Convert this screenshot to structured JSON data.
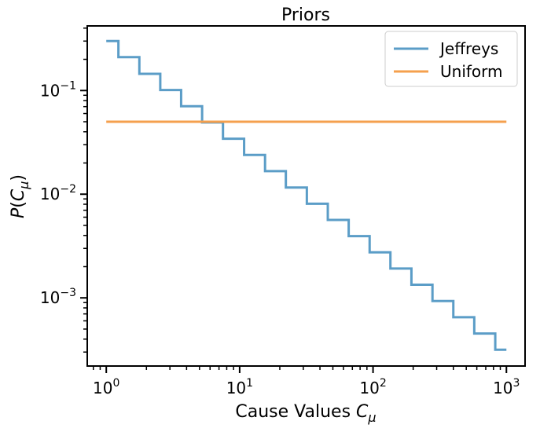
{
  "chart_data": {
    "type": "line",
    "title": "Priors",
    "xlabel": "Cause Values C_μ",
    "ylabel": "P(C_μ)",
    "xscale": "log",
    "yscale": "log",
    "xlim": [
      0.72,
      1380
    ],
    "ylim": [
      0.00022,
      0.42
    ],
    "grid": false,
    "legend_position": "top-right",
    "x_ticks": [
      {
        "value": 1,
        "base": "10",
        "exp": "0"
      },
      {
        "value": 10,
        "base": "10",
        "exp": "1"
      },
      {
        "value": 100,
        "base": "10",
        "exp": "2"
      },
      {
        "value": 1000,
        "base": "10",
        "exp": "3"
      }
    ],
    "y_ticks": [
      {
        "value": 0.001,
        "base": "10",
        "exp": "−3"
      },
      {
        "value": 0.01,
        "base": "10",
        "exp": "−2"
      },
      {
        "value": 0.1,
        "base": "10",
        "exp": "−1"
      }
    ],
    "series": [
      {
        "name": "Jeffreys",
        "color": "#5b9dc7",
        "drawstyle": "steps-post",
        "x": [
          1,
          1.233,
          1.77,
          2.54,
          3.64,
          5.23,
          7.5,
          10.8,
          15.5,
          22.2,
          31.9,
          45.8,
          65.7,
          94.3,
          135,
          194,
          279,
          400,
          574,
          825,
          1000
        ],
        "y": [
          0.3,
          0.21,
          0.145,
          0.101,
          0.0705,
          0.0492,
          0.0343,
          0.0239,
          0.0167,
          0.0116,
          0.0081,
          0.00565,
          0.00394,
          0.00275,
          0.00192,
          0.00134,
          0.000932,
          0.00065,
          0.000453,
          0.000316,
          0.000316
        ]
      },
      {
        "name": "Uniform",
        "color": "#f5a04e",
        "drawstyle": "line",
        "x": [
          1,
          1000
        ],
        "y": [
          0.05,
          0.05
        ]
      }
    ]
  }
}
